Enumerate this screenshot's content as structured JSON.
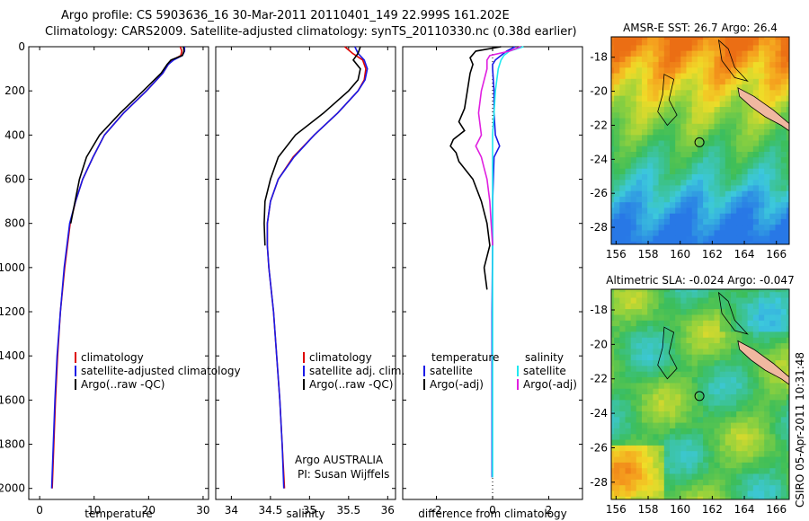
{
  "header": {
    "line1": "Argo profile: CS 5903636_16 30-Mar-2011 20110401_149 22.999S 161.202E",
    "line2": "Climatology: CARS2009. Satellite-adjusted climatology: synTS_20110330.nc (0.38d earlier)"
  },
  "side_stamp": "CSIRO 05-Apr-2011 10:31:48",
  "colors": {
    "clim": "#dd0000",
    "sat": "#1a1ae6",
    "argo": "#000000",
    "cyan": "#20e8f0",
    "magenta": "#e020e0",
    "land": "#f0b8a0"
  },
  "chart_data": [
    {
      "type": "line",
      "xlabel": "temperature",
      "ylabel": "",
      "xlim": [
        -2,
        31
      ],
      "ylim": [
        2050,
        0
      ],
      "yticks": [
        0,
        200,
        400,
        600,
        800,
        1000,
        1200,
        1400,
        1600,
        1800,
        2000
      ],
      "xticks": [
        0,
        10,
        20,
        30
      ],
      "legend": [
        "climatology",
        "satellite-adjusted climatology",
        "Argo(..raw -QC)"
      ],
      "series": [
        {
          "name": "climatology",
          "color": "#dd0000",
          "depth": [
            0,
            20,
            40,
            60,
            80,
            120,
            200,
            300,
            400,
            500,
            600,
            700,
            800,
            1000,
            1200,
            1400,
            1600,
            1800,
            2000
          ],
          "values": [
            25.8,
            26.1,
            25.9,
            24.4,
            23.6,
            22.6,
            19.6,
            15.4,
            11.9,
            9.8,
            7.9,
            6.6,
            5.6,
            4.6,
            3.8,
            3.3,
            2.9,
            2.6,
            2.3
          ]
        },
        {
          "name": "satellite-adjusted climatology",
          "color": "#1a1ae6",
          "depth": [
            0,
            20,
            40,
            60,
            80,
            120,
            200,
            300,
            400,
            500,
            600,
            700,
            800,
            1000,
            1200,
            1400,
            1600,
            1800,
            2000
          ],
          "values": [
            26.6,
            26.6,
            26.2,
            24.6,
            23.6,
            22.6,
            19.6,
            15.4,
            11.9,
            9.8,
            7.9,
            6.6,
            5.5,
            4.5,
            3.8,
            3.2,
            2.8,
            2.5,
            2.2
          ]
        },
        {
          "name": "Argo(..raw -QC)",
          "color": "#000000",
          "depth": [
            0,
            20,
            40,
            60,
            80,
            120,
            200,
            300,
            400,
            500,
            600,
            700,
            800
          ],
          "values": [
            26.4,
            26.5,
            26.2,
            24.1,
            23.4,
            22.3,
            19.0,
            14.8,
            11.0,
            8.6,
            7.3,
            6.5,
            5.7
          ]
        }
      ]
    },
    {
      "type": "line",
      "xlabel": "salinity",
      "ylabel": "",
      "xlim": [
        33.8,
        36.1
      ],
      "ylim": [
        2050,
        0
      ],
      "xticks": [
        34,
        34.5,
        35,
        35.5,
        36
      ],
      "legend": [
        "climatology",
        "satellite adj. clim.",
        "Argo(..raw -QC)"
      ],
      "annotation": [
        "Argo AUSTRALIA",
        "PI: Susan Wijffels"
      ],
      "series": [
        {
          "name": "climatology",
          "color": "#dd0000",
          "depth": [
            0,
            30,
            60,
            100,
            150,
            200,
            300,
            400,
            500,
            600,
            700,
            800,
            900,
            1000,
            1200,
            1400,
            1600,
            1800,
            2000
          ],
          "values": [
            35.45,
            35.55,
            35.68,
            35.72,
            35.7,
            35.62,
            35.36,
            35.06,
            34.79,
            34.6,
            34.5,
            34.46,
            34.46,
            34.48,
            34.54,
            34.58,
            34.62,
            34.65,
            34.68
          ]
        },
        {
          "name": "satellite adj. clim.",
          "color": "#1a1ae6",
          "depth": [
            0,
            30,
            60,
            100,
            150,
            200,
            300,
            400,
            500,
            600,
            700,
            800,
            900,
            1000,
            1200,
            1400,
            1600,
            1800,
            2000
          ],
          "values": [
            35.58,
            35.62,
            35.7,
            35.74,
            35.71,
            35.62,
            35.36,
            35.06,
            34.8,
            34.6,
            34.5,
            34.46,
            34.46,
            34.48,
            34.54,
            34.58,
            34.62,
            34.65,
            34.67
          ]
        },
        {
          "name": "Argo(..raw -QC)",
          "color": "#000000",
          "depth": [
            0,
            30,
            60,
            100,
            150,
            200,
            300,
            400,
            500,
            600,
            700,
            800,
            900
          ],
          "values": [
            35.65,
            35.62,
            35.56,
            35.65,
            35.62,
            35.5,
            35.18,
            34.82,
            34.6,
            34.5,
            34.43,
            34.42,
            34.43
          ]
        }
      ]
    },
    {
      "type": "line",
      "xlabel": "difference from climatology",
      "ylabel": "",
      "xlim": [
        -3.2,
        3.2
      ],
      "ylim": [
        2050,
        0
      ],
      "xticks": [
        -2,
        0,
        2
      ],
      "legend_titles": [
        "temperature",
        "salinity"
      ],
      "legend": [
        "satellite",
        "Argo(-adj)",
        "satellite",
        "Argo(-adj)"
      ],
      "series": [
        {
          "name": "satellite",
          "group": "temperature",
          "color": "#1a1ae6",
          "depth": [
            0,
            20,
            40,
            60,
            80,
            100,
            200,
            300,
            400,
            450,
            500,
            700,
            900,
            1200,
            1500,
            1800,
            1950
          ],
          "values": [
            0.8,
            0.5,
            0.3,
            0.1,
            0.0,
            0.0,
            0.05,
            0.05,
            0.1,
            0.25,
            0.05,
            0.0,
            0.0,
            -0.02,
            -0.02,
            -0.02,
            -0.02
          ]
        },
        {
          "name": "Argo(-adj)",
          "group": "temperature",
          "color": "#000000",
          "depth": [
            0,
            20,
            50,
            80,
            120,
            200,
            280,
            340,
            380,
            420,
            450,
            480,
            520,
            600,
            700,
            800,
            900,
            1000,
            1100
          ],
          "values": [
            0.3,
            -0.6,
            -0.8,
            -0.7,
            -0.8,
            -0.9,
            -1.0,
            -1.2,
            -1.0,
            -1.4,
            -1.5,
            -1.3,
            -1.2,
            -0.7,
            -0.4,
            -0.2,
            -0.1,
            -0.3,
            -0.2
          ]
        },
        {
          "name": "satellite",
          "group": "salinity",
          "color": "#20e8f0",
          "depth": [
            0,
            20,
            40,
            60,
            100,
            200,
            300,
            400,
            500,
            700,
            900,
            1200,
            1500,
            1800,
            1950
          ],
          "values": [
            1.1,
            0.6,
            0.4,
            0.3,
            0.2,
            0.1,
            0.05,
            0.0,
            0.0,
            0.0,
            0.0,
            0.0,
            0.0,
            0.0,
            0.0
          ]
        },
        {
          "name": "Argo(-adj)",
          "group": "salinity",
          "color": "#e020e0",
          "depth": [
            0,
            20,
            40,
            60,
            100,
            200,
            300,
            400,
            450,
            500,
            550,
            600,
            700,
            800,
            900
          ],
          "values": [
            1.0,
            0.6,
            -0.1,
            -0.2,
            -0.2,
            -0.4,
            -0.5,
            -0.4,
            -0.6,
            -0.4,
            -0.3,
            -0.2,
            -0.1,
            -0.05,
            0.0
          ]
        }
      ]
    },
    {
      "type": "heatmap",
      "title": "AMSR-E SST: 26.7  Argo: 26.4",
      "xticks": [
        156,
        158,
        160,
        162,
        164,
        166
      ],
      "yticks": [
        -18,
        -20,
        -22,
        -24,
        -26,
        -28
      ],
      "xlim": [
        155.7,
        166.8
      ],
      "ylim": [
        -29,
        -16.8
      ],
      "marker": {
        "lon": 161.2,
        "lat": -23.0
      }
    },
    {
      "type": "heatmap",
      "title": "Altimetric SLA: -0.024  Argo: -0.047",
      "xticks": [
        156,
        158,
        160,
        162,
        164,
        166
      ],
      "yticks": [
        -18,
        -20,
        -22,
        -24,
        -26,
        -28
      ],
      "xlim": [
        155.7,
        166.8
      ],
      "ylim": [
        -29,
        -16.8
      ],
      "marker": {
        "lon": 161.2,
        "lat": -23.0
      }
    }
  ]
}
